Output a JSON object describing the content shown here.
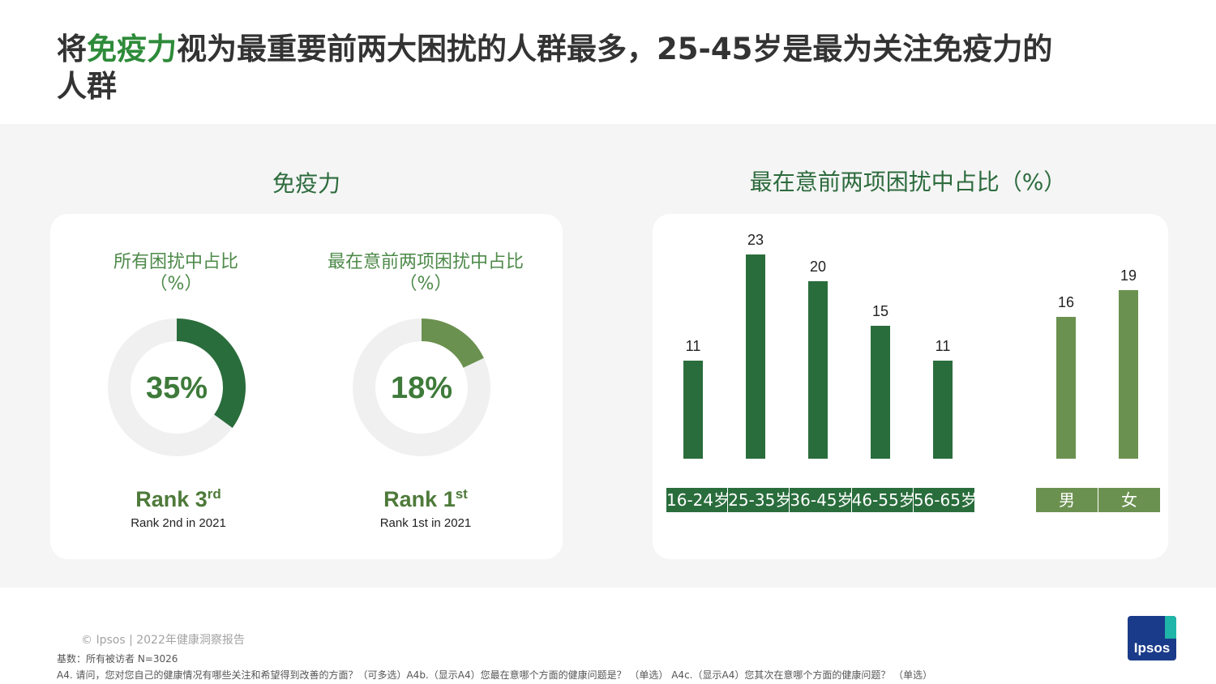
{
  "title": {
    "prefix": "将",
    "highlight": "免疫力",
    "suffix": "视为最重要前两大困扰的人群最多，25-45岁是最为关注免疫力的人群"
  },
  "left_section": {
    "title": "免疫力",
    "donuts": [
      {
        "label_line1": "所有困扰中占比",
        "label_line2": "（%）",
        "value_text": "35%",
        "value": 35,
        "color": "#2a6d3c",
        "rank_prefix": "Rank ",
        "rank_num": "3",
        "rank_suffix": "rd",
        "rank_sub": "Rank 2nd in 2021"
      },
      {
        "label_line1": "最在意前两项困扰中占比",
        "label_line2": "（%）",
        "value_text": "18%",
        "value": 18,
        "color": "#6b9150",
        "rank_prefix": "Rank ",
        "rank_num": "1",
        "rank_suffix": "st",
        "rank_sub": "Rank 1st in 2021"
      }
    ],
    "track_color": "#f0f0f0",
    "value_text_color": "#3e7a3a"
  },
  "right_section": {
    "title": "最在意前两项困扰中占比（%）"
  },
  "chart_data": {
    "type": "bar",
    "groups": [
      {
        "categories": [
          "16-24岁",
          "25-35岁",
          "36-45岁",
          "46-55岁",
          "56-65岁"
        ],
        "values": [
          11,
          23,
          20,
          15,
          11
        ],
        "color": "#2a6d3c"
      },
      {
        "categories": [
          "男",
          "女"
        ],
        "values": [
          16,
          19
        ],
        "color": "#6b9150"
      }
    ],
    "ylim": [
      0,
      23
    ],
    "grid": false
  },
  "footer": {
    "copyright": "© Ipsos | 2022年健康洞察报告",
    "base": "基数：所有被访者 N=3026",
    "question": "A4. 请问，您对您自己的健康情况有哪些关注和希望得到改善的方面？（可多选）A4b.（显示A4）您最在意哪个方面的健康问题是？ （单选） A4c.（显示A4）您其次在意哪个方面的健康问题？ （单选）"
  },
  "logo": {
    "text": "Ipsos"
  }
}
